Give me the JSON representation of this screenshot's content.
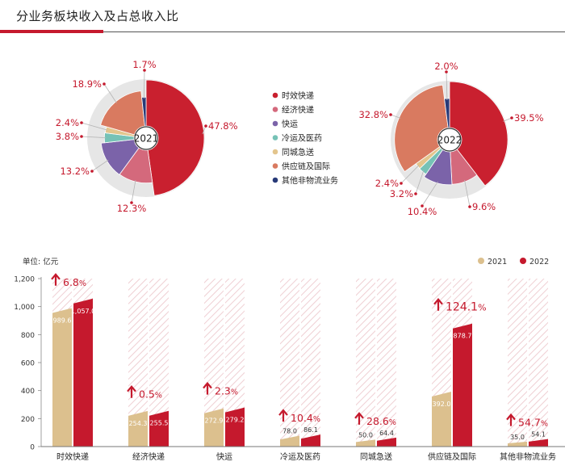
{
  "title": "分业务板块收入及占总收入比",
  "colors": {
    "express": "#c9202f",
    "economy": "#d4697c",
    "freight": "#7b63a9",
    "cold": "#76c2b6",
    "sameday": "#e3c58d",
    "supply": "#d97a60",
    "other": "#283a78",
    "bar2021": "#dcc08e",
    "bar2022": "#c5192d",
    "accent": "#c5192d"
  },
  "legend": [
    {
      "label": "时效快递",
      "color": "#c9202f"
    },
    {
      "label": "经济快递",
      "color": "#d4697c"
    },
    {
      "label": "快运",
      "color": "#7b63a9"
    },
    {
      "label": "冷运及医药",
      "color": "#76c2b6"
    },
    {
      "label": "同城急送",
      "color": "#e3c58d"
    },
    {
      "label": "供应链及国际",
      "color": "#d97a60"
    },
    {
      "label": "其他非物流业务",
      "color": "#283a78"
    }
  ],
  "chart_data": [
    {
      "type": "pie",
      "center_label": "2021",
      "slices": [
        {
          "name": "时效快递",
          "value": 47.8,
          "label": "47.8%"
        },
        {
          "name": "经济快递",
          "value": 12.3,
          "label": "12.3%"
        },
        {
          "name": "快运",
          "value": 13.2,
          "label": "13.2%"
        },
        {
          "name": "冷运及医药",
          "value": 3.8,
          "label": "3.8%"
        },
        {
          "name": "同城急送",
          "value": 2.4,
          "label": "2.4%"
        },
        {
          "name": "供应链及国际",
          "value": 18.9,
          "label": "18.9%"
        },
        {
          "name": "其他非物流业务",
          "value": 1.7,
          "label": "1.7%"
        }
      ]
    },
    {
      "type": "pie",
      "center_label": "2022",
      "slices": [
        {
          "name": "时效快递",
          "value": 39.5,
          "label": "39.5%"
        },
        {
          "name": "经济快递",
          "value": 9.6,
          "label": "9.6%"
        },
        {
          "name": "快运",
          "value": 10.4,
          "label": "10.4%"
        },
        {
          "name": "冷运及医药",
          "value": 3.2,
          "label": "3.2%"
        },
        {
          "name": "同城急送",
          "value": 2.4,
          "label": "2.4%"
        },
        {
          "name": "供应链及国际",
          "value": 32.8,
          "label": "32.8%"
        },
        {
          "name": "其他非物流业务",
          "value": 2.0,
          "label": "2.0%"
        }
      ]
    },
    {
      "type": "bar",
      "unit_label": "单位: 亿元",
      "categories": [
        "时效快递",
        "经济快递",
        "快运",
        "冷运及医药",
        "同城急送",
        "供应链及国际",
        "其他非物流业务"
      ],
      "series": [
        {
          "name": "2021",
          "values": [
            989.6,
            254.3,
            272.9,
            78.0,
            50.0,
            392.0,
            35.0
          ],
          "labels": [
            "989.6",
            "254.3",
            "272.9",
            "78.0",
            "50.0",
            "392.0",
            "35.0"
          ]
        },
        {
          "name": "2022",
          "values": [
            1057.0,
            255.5,
            279.2,
            86.1,
            64.4,
            878.7,
            54.1
          ],
          "labels": [
            "1,057.0",
            "255.5",
            "279.2",
            "86.1",
            "64.4",
            "878.7",
            "54.1"
          ]
        }
      ],
      "growth": [
        {
          "num": "6.8",
          "pct": "%"
        },
        {
          "num": "0.5",
          "pct": "%"
        },
        {
          "num": "2.3",
          "pct": "%"
        },
        {
          "num": "10.4",
          "pct": "%"
        },
        {
          "num": "28.6",
          "pct": "%"
        },
        {
          "num": "124.1",
          "pct": "%"
        },
        {
          "num": "54.7",
          "pct": "%"
        }
      ],
      "yticks": [
        "0",
        "200",
        "400",
        "600",
        "800",
        "1,000",
        "1,200"
      ],
      "ytick_values": [
        0,
        200,
        400,
        600,
        800,
        1000,
        1200
      ],
      "ylim": [
        0,
        1200
      ]
    }
  ]
}
